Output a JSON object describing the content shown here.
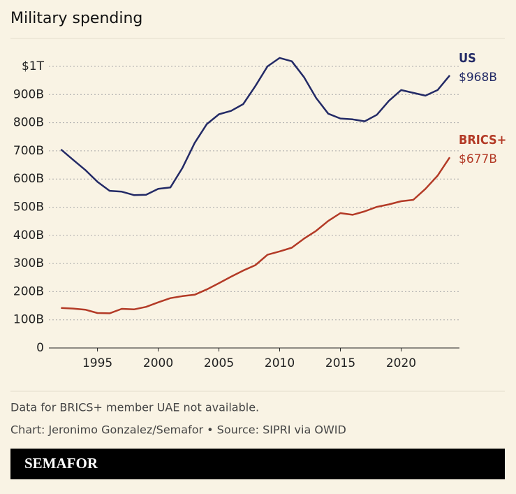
{
  "chart_data": {
    "type": "line",
    "title": "Military spending",
    "x": [
      1992,
      1993,
      1994,
      1995,
      1996,
      1997,
      1998,
      1999,
      2000,
      2001,
      2002,
      2003,
      2004,
      2005,
      2006,
      2007,
      2008,
      2009,
      2010,
      2011,
      2012,
      2013,
      2014,
      2015,
      2016,
      2017,
      2018,
      2019,
      2020,
      2021,
      2022,
      2023,
      2024
    ],
    "series": [
      {
        "name": "US",
        "color": "#232a66",
        "values": [
          705,
          668,
          632,
          590,
          558,
          555,
          543,
          544,
          565,
          570,
          640,
          728,
          795,
          830,
          842,
          866,
          930,
          1000,
          1030,
          1018,
          962,
          888,
          832,
          815,
          812,
          805,
          828,
          878,
          916,
          906,
          896,
          916,
          968
        ],
        "value_labels": [
          null,
          null,
          null,
          null,
          null,
          null,
          null,
          null,
          null,
          null,
          null,
          null,
          null,
          null,
          null,
          null,
          null,
          null,
          null,
          null,
          null,
          null,
          null,
          null,
          null,
          null,
          null,
          null,
          null,
          null,
          null,
          null,
          "$968B"
        ]
      },
      {
        "name": "BRICS+",
        "color": "#b33a26",
        "values": [
          142,
          140,
          136,
          124,
          123,
          139,
          137,
          146,
          162,
          177,
          184,
          189,
          208,
          230,
          253,
          275,
          294,
          331,
          343,
          356,
          388,
          416,
          451,
          479,
          473,
          485,
          501,
          510,
          521,
          526,
          565,
          612,
          677
        ],
        "value_labels": [
          null,
          null,
          null,
          null,
          null,
          null,
          null,
          null,
          null,
          null,
          null,
          null,
          null,
          null,
          null,
          null,
          null,
          null,
          null,
          null,
          null,
          null,
          null,
          null,
          null,
          null,
          null,
          null,
          null,
          null,
          null,
          null,
          "$677B"
        ]
      }
    ],
    "xlim": [
      1991,
      2024.8
    ],
    "xticks": [
      1995,
      2000,
      2005,
      2010,
      2015,
      2020
    ],
    "ylim": [
      0,
      1000
    ],
    "yticks": [
      0,
      {
        "value": 100,
        "label": "100B"
      },
      {
        "value": 200,
        "label": "200B"
      },
      {
        "value": 300,
        "label": "300B"
      },
      {
        "value": 400,
        "label": "400B"
      },
      {
        "value": 500,
        "label": "500B"
      },
      {
        "value": 600,
        "label": "600B"
      },
      {
        "value": 700,
        "label": "700B"
      },
      {
        "value": 800,
        "label": "800B"
      },
      {
        "value": 900,
        "label": "900B"
      },
      {
        "value": 1000,
        "label": "$1T"
      }
    ],
    "grid": true,
    "note": "Data for BRICS+ member UAE not available.",
    "credit": "Chart: Jeronimo Gonzalez/Semafor • Source: SIPRI via OWID"
  },
  "footer": {
    "brand": "SEMAFOR"
  }
}
